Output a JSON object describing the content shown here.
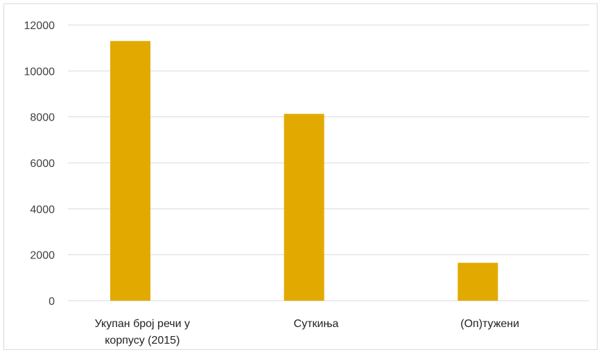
{
  "chart_data": {
    "type": "bar",
    "title": "",
    "xlabel": "",
    "ylabel": "",
    "categories": [
      [
        "Укупан број речи у",
        "корпусу (2015)"
      ],
      [
        "Суткиња"
      ],
      [
        "(Оп)тужени"
      ]
    ],
    "values": [
      11300,
      8130,
      1650
    ],
    "ylim": [
      0,
      12000
    ],
    "yticks": [
      "0",
      "2000",
      "4000",
      "6000",
      "8000",
      "10000",
      "12000"
    ],
    "grid": true,
    "legend": "none",
    "bar_color": "#E2AA00"
  }
}
